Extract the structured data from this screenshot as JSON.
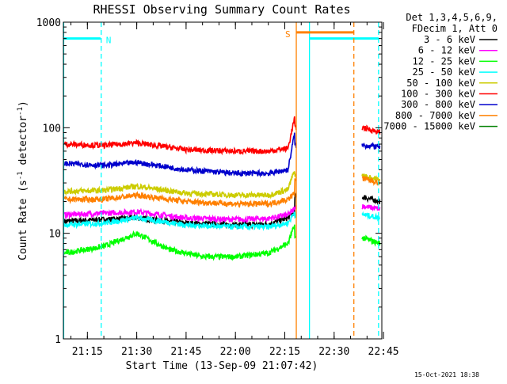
{
  "chart_data": {
    "type": "line",
    "title": "RHESSI Observing Summary Count Rates",
    "xlabel": "Start Time (13-Sep-09 21:07:42)",
    "ylabel_main": "Count Rate (s",
    "ylabel_sup1": "-1",
    "ylabel_mid": " detector",
    "ylabel_sup2": "-1",
    "ylabel_end": ")",
    "footer": "15-Oct-2021 18:38",
    "legend_header": [
      "Det 1,3,4,5,6,9,",
      "FDecim 1, Att 0"
    ],
    "y_scale": "log",
    "ylim": [
      1,
      1000
    ],
    "xlim_min": [
      7.7,
      104.5
    ],
    "y_ticks": [
      {
        "v": 1000,
        "label": "1000"
      },
      {
        "v": 100,
        "label": "100"
      },
      {
        "v": 10,
        "label": "10"
      },
      {
        "v": 1,
        "label": "1"
      }
    ],
    "x_ticks": [
      {
        "v": 15,
        "label": "21:15"
      },
      {
        "v": 30,
        "label": "21:30"
      },
      {
        "v": 45,
        "label": "21:45"
      },
      {
        "v": 60,
        "label": "22:00"
      },
      {
        "v": 75,
        "label": "22:15"
      },
      {
        "v": 90,
        "label": "22:30"
      },
      {
        "v": 105,
        "label": "22:45"
      }
    ],
    "x_minor_step": 5,
    "gaps": [
      [
        78.5,
        98.5
      ]
    ],
    "series": [
      {
        "name": "3 - 6 keV",
        "color": "#000000",
        "values": [
          [
            8,
            13
          ],
          [
            20,
            13.5
          ],
          [
            30,
            14
          ],
          [
            45,
            12.5
          ],
          [
            60,
            12
          ],
          [
            70,
            12.2
          ],
          [
            76,
            14
          ],
          [
            78,
            16
          ],
          [
            99,
            22
          ],
          [
            104,
            20
          ]
        ]
      },
      {
        "name": "6 - 12 keV",
        "color": "#ff00ff",
        "values": [
          [
            8,
            15
          ],
          [
            20,
            15.5
          ],
          [
            30,
            16
          ],
          [
            45,
            14
          ],
          [
            60,
            13.5
          ],
          [
            70,
            13.8
          ],
          [
            76,
            15
          ],
          [
            78,
            17
          ],
          [
            99,
            18
          ],
          [
            104,
            17
          ]
        ]
      },
      {
        "name": "12 - 25 keV",
        "color": "#00ff00",
        "values": [
          [
            8,
            6.5
          ],
          [
            20,
            7.5
          ],
          [
            30,
            10
          ],
          [
            40,
            7
          ],
          [
            50,
            6
          ],
          [
            60,
            6
          ],
          [
            70,
            6.5
          ],
          [
            76,
            8
          ],
          [
            78,
            12
          ],
          [
            99,
            9
          ],
          [
            104,
            8
          ]
        ]
      },
      {
        "name": "25 - 50 keV",
        "color": "#00ffff",
        "values": [
          [
            8,
            12
          ],
          [
            20,
            12.5
          ],
          [
            30,
            14
          ],
          [
            45,
            12
          ],
          [
            60,
            11.5
          ],
          [
            70,
            11.5
          ],
          [
            76,
            12.5
          ],
          [
            78,
            16
          ],
          [
            99,
            15
          ],
          [
            104,
            14
          ]
        ]
      },
      {
        "name": "50 - 100 keV",
        "color": "#cccc00",
        "values": [
          [
            8,
            25
          ],
          [
            20,
            25.5
          ],
          [
            30,
            28
          ],
          [
            45,
            24
          ],
          [
            60,
            23
          ],
          [
            70,
            23
          ],
          [
            76,
            26
          ],
          [
            78,
            40
          ],
          [
            99,
            35
          ],
          [
            104,
            32
          ]
        ]
      },
      {
        "name": "100 - 300 keV",
        "color": "#ff0000",
        "values": [
          [
            8,
            70
          ],
          [
            20,
            68
          ],
          [
            30,
            72
          ],
          [
            45,
            62
          ],
          [
            60,
            60
          ],
          [
            70,
            60
          ],
          [
            76,
            64
          ],
          [
            78,
            125
          ],
          [
            99,
            100
          ],
          [
            104,
            90
          ]
        ]
      },
      {
        "name": "300 - 800 keV",
        "color": "#0000cc",
        "values": [
          [
            8,
            46
          ],
          [
            20,
            44
          ],
          [
            30,
            47
          ],
          [
            45,
            40
          ],
          [
            60,
            37
          ],
          [
            70,
            37
          ],
          [
            76,
            40
          ],
          [
            78,
            90
          ],
          [
            99,
            68
          ],
          [
            104,
            66
          ]
        ]
      },
      {
        "name": "800 - 7000 keV",
        "color": "#ff8000",
        "values": [
          [
            8,
            21
          ],
          [
            20,
            21
          ],
          [
            30,
            23
          ],
          [
            45,
            20
          ],
          [
            60,
            19
          ],
          [
            70,
            19
          ],
          [
            76,
            21
          ],
          [
            78,
            24
          ],
          [
            99,
            33
          ],
          [
            104,
            30
          ]
        ]
      },
      {
        "name": "7000 - 15000 keV",
        "color": "#008000",
        "values": []
      }
    ],
    "flags": [
      {
        "label": "N",
        "color": "#00ffff",
        "level": 700,
        "segments": [
          [
            7.7,
            19
          ],
          [
            82.5,
            103.5
          ]
        ],
        "markers": [
          {
            "x": 7.8,
            "style": "solid"
          },
          {
            "x": 19.2,
            "style": "dashed"
          },
          {
            "x": 82.5,
            "style": "solid"
          },
          {
            "x": 103.5,
            "style": "dashed"
          }
        ]
      },
      {
        "label": "S",
        "color": "#ff8000",
        "level": 800,
        "segments": [
          [
            78.5,
            96
          ]
        ],
        "markers": [
          {
            "x": 78.5,
            "style": "solid"
          },
          {
            "x": 96,
            "style": "dashed"
          }
        ]
      }
    ]
  }
}
